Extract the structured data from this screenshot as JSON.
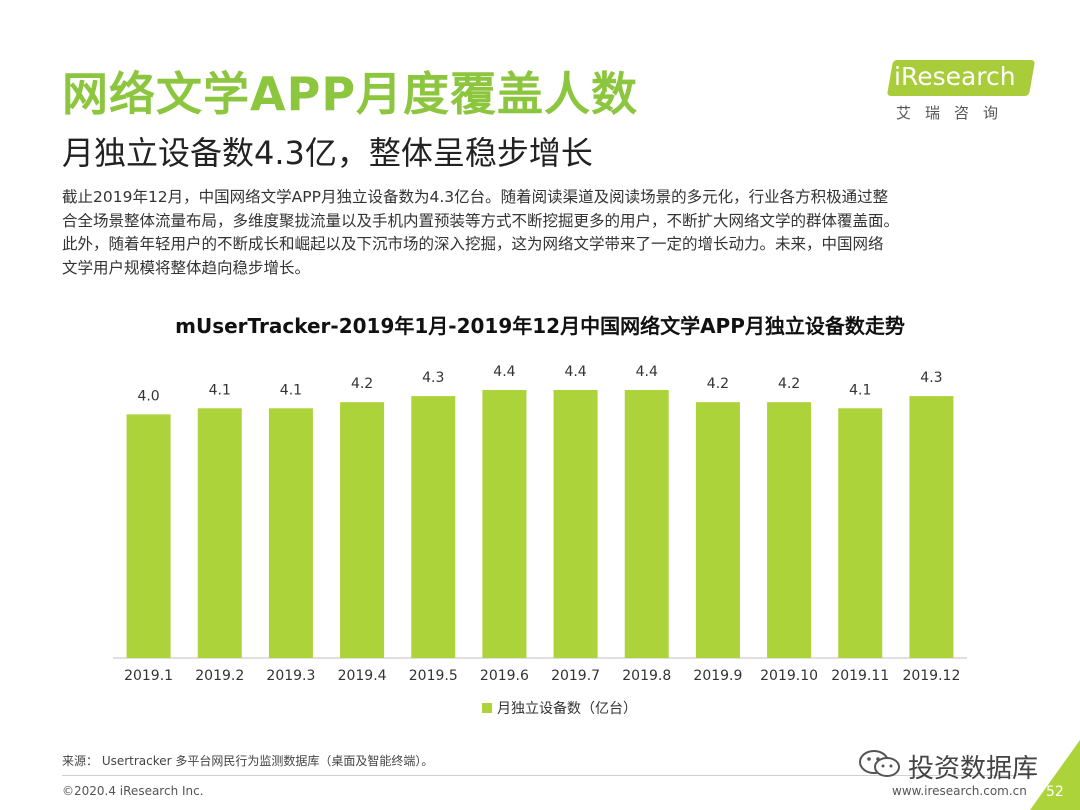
{
  "header": {
    "title": "网络文学APP月度覆盖人数",
    "subtitle": "月独立设备数4.3亿，整体呈稳步增长"
  },
  "logo": {
    "brand": "iResearch",
    "sub": "艾瑞咨询",
    "color": "#a9cc3a"
  },
  "body": {
    "lines": [
      "截止2019年12月，中国网络文学APP月独立设备数为4.3亿台。随着阅读渠道及阅读场景的多元化，行业各方积极通过整",
      "合全场景整体流量布局，多维度聚拢流量以及手机内置预装等方式不断挖掘更多的用户，不断扩大网络文学的群体覆盖面。",
      "此外，随着年轻用户的不断成长和崛起以及下沉市场的深入挖掘，这为网络文学带来了一定的增长动力。未来，中国网络",
      "文学用户规模将整体趋向稳步增长。"
    ]
  },
  "chart_data": {
    "type": "bar",
    "title": "mUserTracker-2019年1月-2019年12月中国网络文学APP月独立设备数走势",
    "categories": [
      "2019.1",
      "2019.2",
      "2019.3",
      "2019.4",
      "2019.5",
      "2019.6",
      "2019.7",
      "2019.8",
      "2019.9",
      "2019.10",
      "2019.11",
      "2019.12"
    ],
    "series": [
      {
        "name": "月独立设备数（亿台）",
        "values": [
          4.0,
          4.1,
          4.1,
          4.2,
          4.3,
          4.4,
          4.4,
          4.4,
          4.2,
          4.2,
          4.1,
          4.3
        ],
        "labels": [
          "4.0",
          "4.1",
          "4.1",
          "4.2",
          "4.3",
          "4.4",
          "4.4",
          "4.4",
          "4.2",
          "4.2",
          "4.1",
          "4.3"
        ],
        "color": "#acd33a"
      }
    ],
    "ylim": [
      0,
      4.4
    ],
    "grid": false,
    "legend": "bottom"
  },
  "footer": {
    "source": "来源： Usertracker 多平台网民行为监测数据库（桌面及智能终端）。",
    "copyright": "©2020.4 iResearch Inc.",
    "url": "www.iresearch.com.cn",
    "page": "52",
    "watermark": "投资数据库"
  }
}
